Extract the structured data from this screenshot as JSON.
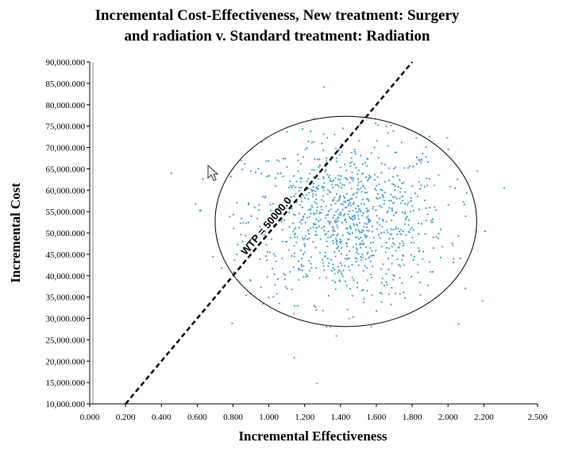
{
  "chart_data": {
    "type": "scatter",
    "title_lines": [
      "Incremental Cost-Effectiveness, New treatment: Surgery",
      "and radiation v. Standard treatment: Radiation"
    ],
    "xlabel": "Incremental Effectiveness",
    "ylabel": "Incremental Cost",
    "xlim": [
      0,
      2.5
    ],
    "ylim": [
      10000,
      90000
    ],
    "x_ticks": [
      "0.000",
      "0.200",
      "0.400",
      "0.600",
      "0.800",
      "1.000",
      "1.200",
      "1.400",
      "1.600",
      "1.800",
      "2.000",
      "2.200",
      "2.500"
    ],
    "x_tick_values": [
      0,
      0.2,
      0.4,
      0.6,
      0.8,
      1.0,
      1.2,
      1.4,
      1.6,
      1.8,
      2.0,
      2.2,
      2.5
    ],
    "y_ticks": [
      "10,000.000",
      "15,000.000",
      "20,000.000",
      "25,000.000",
      "30,000.000",
      "35,000.000",
      "40,000.000",
      "45,000.000",
      "50,000.000",
      "55,000.000",
      "60,000.000",
      "65,000.000",
      "70,000.000",
      "75,000.000",
      "80,000.000",
      "85,000.000",
      "90,000.000"
    ],
    "y_tick_values": [
      10000,
      15000,
      20000,
      25000,
      30000,
      35000,
      40000,
      45000,
      50000,
      55000,
      60000,
      65000,
      70000,
      75000,
      80000,
      85000,
      90000
    ],
    "grid": false,
    "point_color": "#4aa8d4",
    "point_cloud": {
      "count": 1000,
      "mean_x": 1.43,
      "sd_x": 0.28,
      "mean_y": 53000,
      "sd_y": 9500
    },
    "confidence_ellipse": {
      "center_x": 1.43,
      "center_y": 52700,
      "semi_axis_x": 0.73,
      "semi_axis_y": 24600
    },
    "wtp_line": {
      "label": "WTP = 50000.0",
      "slope": 50000,
      "x_start": 0.2,
      "x_end": 1.8
    }
  }
}
